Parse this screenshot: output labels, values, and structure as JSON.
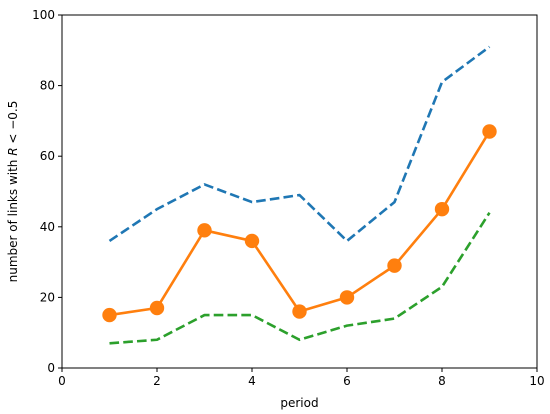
{
  "chart_data": {
    "type": "line",
    "xlabel": "period",
    "ylabel_parts": [
      "number of links with ",
      "R",
      " < −0.5"
    ],
    "xlim": [
      0,
      10
    ],
    "ylim": [
      0,
      100
    ],
    "xticks": [
      0,
      2,
      4,
      6,
      8,
      10
    ],
    "yticks": [
      0,
      20,
      40,
      60,
      80,
      100
    ],
    "grid": false,
    "x": [
      1,
      2,
      3,
      4,
      5,
      6,
      7,
      8,
      9
    ],
    "series": [
      {
        "values": [
          36,
          45,
          52,
          47,
          49,
          36,
          47,
          81,
          91
        ],
        "color": "#1f77b4",
        "style": "dashed",
        "markers": false
      },
      {
        "values": [
          15,
          17,
          39,
          36,
          16,
          20,
          29,
          45,
          67
        ],
        "color": "#ff7f0e",
        "style": "solid",
        "markers": true
      },
      {
        "values": [
          7,
          8,
          15,
          15,
          8,
          12,
          14,
          23,
          44
        ],
        "color": "#2ca02c",
        "style": "dashed",
        "markers": false
      }
    ]
  }
}
